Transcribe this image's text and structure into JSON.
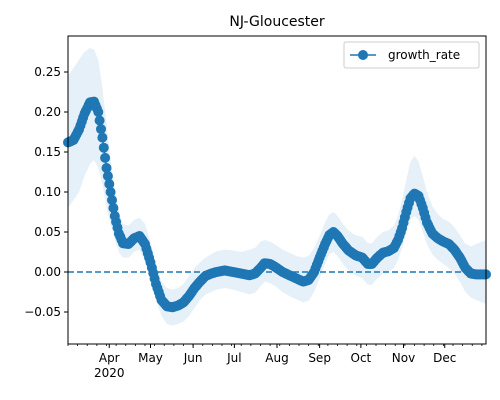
{
  "chart_data": {
    "type": "line",
    "title": "NJ-Gloucester",
    "xlabel": "",
    "ylabel": "",
    "x_axis": {
      "kind": "date",
      "start": "2020-03-02",
      "end": "2020-12-31",
      "ticks": [
        {
          "date": "2020-04-01",
          "label": "Apr",
          "sublabel": "2020"
        },
        {
          "date": "2020-05-01",
          "label": "May"
        },
        {
          "date": "2020-06-01",
          "label": "Jun"
        },
        {
          "date": "2020-07-01",
          "label": "Jul"
        },
        {
          "date": "2020-08-01",
          "label": "Aug"
        },
        {
          "date": "2020-09-01",
          "label": "Sep"
        },
        {
          "date": "2020-10-01",
          "label": "Oct"
        },
        {
          "date": "2020-11-01",
          "label": "Nov"
        },
        {
          "date": "2020-12-01",
          "label": "Dec"
        }
      ],
      "minor_ticks": "weekly"
    },
    "y_axis": {
      "ylim": [
        -0.09,
        0.295
      ],
      "ticks": [
        -0.05,
        0.0,
        0.05,
        0.1,
        0.15,
        0.2,
        0.25
      ],
      "tick_labels": [
        "−0.05",
        "0.00",
        "0.05",
        "0.10",
        "0.15",
        "0.20",
        "0.25"
      ]
    },
    "reference_line": {
      "y": 0.0,
      "style": "dashed",
      "color": "#1f77b4"
    },
    "legend": {
      "placement": "top-right",
      "entries": [
        "growth_rate"
      ]
    },
    "grid": false,
    "series": [
      {
        "name": "growth_rate",
        "color": "#1f77b4",
        "marker": "circle",
        "band_color": "#dce9f5",
        "points": [
          [
            "2020-03-02",
            0.162,
            0.08,
            0.245
          ],
          [
            "2020-03-06",
            0.165,
            0.09,
            0.255
          ],
          [
            "2020-03-10",
            0.178,
            0.1,
            0.265
          ],
          [
            "2020-03-14",
            0.198,
            0.12,
            0.275
          ],
          [
            "2020-03-18",
            0.212,
            0.135,
            0.28
          ],
          [
            "2020-03-21",
            0.213,
            0.14,
            0.278
          ],
          [
            "2020-03-24",
            0.2,
            0.13,
            0.265
          ],
          [
            "2020-03-27",
            0.168,
            0.11,
            0.23
          ],
          [
            "2020-03-30",
            0.13,
            0.08,
            0.185
          ],
          [
            "2020-04-02",
            0.1,
            0.06,
            0.14
          ],
          [
            "2020-04-05",
            0.07,
            0.04,
            0.1
          ],
          [
            "2020-04-08",
            0.048,
            0.025,
            0.075
          ],
          [
            "2020-04-11",
            0.036,
            0.018,
            0.06
          ],
          [
            "2020-04-15",
            0.035,
            0.018,
            0.058
          ],
          [
            "2020-04-19",
            0.042,
            0.025,
            0.065
          ],
          [
            "2020-04-23",
            0.045,
            0.028,
            0.068
          ],
          [
            "2020-04-27",
            0.035,
            0.015,
            0.06
          ],
          [
            "2020-05-01",
            0.012,
            -0.01,
            0.038
          ],
          [
            "2020-05-05",
            -0.015,
            -0.035,
            0.008
          ],
          [
            "2020-05-09",
            -0.035,
            -0.055,
            -0.012
          ],
          [
            "2020-05-13",
            -0.043,
            -0.065,
            -0.02
          ],
          [
            "2020-05-17",
            -0.044,
            -0.067,
            -0.022
          ],
          [
            "2020-05-21",
            -0.042,
            -0.065,
            -0.02
          ],
          [
            "2020-05-25",
            -0.038,
            -0.062,
            -0.015
          ],
          [
            "2020-05-29",
            -0.03,
            -0.055,
            -0.005
          ],
          [
            "2020-06-02",
            -0.02,
            -0.045,
            0.005
          ],
          [
            "2020-06-06",
            -0.012,
            -0.035,
            0.012
          ],
          [
            "2020-06-10",
            -0.005,
            -0.028,
            0.018
          ],
          [
            "2020-06-14",
            -0.002,
            -0.025,
            0.022
          ],
          [
            "2020-06-18",
            0.0,
            -0.022,
            0.026
          ],
          [
            "2020-06-24",
            0.002,
            -0.02,
            0.028
          ],
          [
            "2020-06-30",
            0.0,
            -0.022,
            0.027
          ],
          [
            "2020-07-06",
            -0.002,
            -0.025,
            0.025
          ],
          [
            "2020-07-12",
            -0.004,
            -0.028,
            0.028
          ],
          [
            "2020-07-16",
            -0.002,
            -0.026,
            0.03
          ],
          [
            "2020-07-20",
            0.005,
            -0.018,
            0.038
          ],
          [
            "2020-07-23",
            0.011,
            -0.012,
            0.04
          ],
          [
            "2020-07-27",
            0.01,
            -0.014,
            0.038
          ],
          [
            "2020-07-31",
            0.006,
            -0.018,
            0.034
          ],
          [
            "2020-08-05",
            0.0,
            -0.025,
            0.028
          ],
          [
            "2020-08-10",
            -0.004,
            -0.03,
            0.024
          ],
          [
            "2020-08-15",
            -0.008,
            -0.034,
            0.02
          ],
          [
            "2020-08-20",
            -0.012,
            -0.038,
            0.018
          ],
          [
            "2020-08-24",
            -0.01,
            -0.036,
            0.02
          ],
          [
            "2020-08-28",
            0.0,
            -0.025,
            0.03
          ],
          [
            "2020-09-01",
            0.018,
            -0.008,
            0.045
          ],
          [
            "2020-09-05",
            0.035,
            0.01,
            0.062
          ],
          [
            "2020-09-08",
            0.046,
            0.022,
            0.072
          ],
          [
            "2020-09-11",
            0.05,
            0.025,
            0.075
          ],
          [
            "2020-09-14",
            0.045,
            0.02,
            0.07
          ],
          [
            "2020-09-18",
            0.035,
            0.01,
            0.06
          ],
          [
            "2020-09-22",
            0.027,
            0.002,
            0.052
          ],
          [
            "2020-09-27",
            0.021,
            -0.004,
            0.046
          ],
          [
            "2020-10-02",
            0.018,
            -0.008,
            0.044
          ],
          [
            "2020-10-06",
            0.01,
            -0.016,
            0.036
          ],
          [
            "2020-10-09",
            0.01,
            -0.016,
            0.036
          ],
          [
            "2020-10-13",
            0.018,
            -0.008,
            0.044
          ],
          [
            "2020-10-17",
            0.024,
            -0.002,
            0.05
          ],
          [
            "2020-10-21",
            0.026,
            0.0,
            0.052
          ],
          [
            "2020-10-25",
            0.03,
            0.005,
            0.058
          ],
          [
            "2020-10-28",
            0.04,
            0.015,
            0.07
          ],
          [
            "2020-10-31",
            0.055,
            0.03,
            0.09
          ],
          [
            "2020-11-03",
            0.075,
            0.05,
            0.115
          ],
          [
            "2020-11-06",
            0.092,
            0.065,
            0.138
          ],
          [
            "2020-11-09",
            0.098,
            0.07,
            0.145
          ],
          [
            "2020-11-12",
            0.095,
            0.065,
            0.138
          ],
          [
            "2020-11-15",
            0.08,
            0.05,
            0.12
          ],
          [
            "2020-11-18",
            0.062,
            0.035,
            0.1
          ],
          [
            "2020-11-22",
            0.048,
            0.022,
            0.082
          ],
          [
            "2020-11-26",
            0.042,
            0.015,
            0.072
          ],
          [
            "2020-11-30",
            0.038,
            0.01,
            0.066
          ],
          [
            "2020-12-04",
            0.035,
            0.005,
            0.063
          ],
          [
            "2020-12-08",
            0.028,
            -0.002,
            0.056
          ],
          [
            "2020-12-12",
            0.018,
            -0.012,
            0.046
          ],
          [
            "2020-12-16",
            0.005,
            -0.025,
            0.035
          ],
          [
            "2020-12-20",
            -0.002,
            -0.032,
            0.032
          ],
          [
            "2020-12-24",
            -0.003,
            -0.035,
            0.035
          ],
          [
            "2020-12-28",
            -0.003,
            -0.038,
            0.038
          ],
          [
            "2020-12-31",
            -0.003,
            -0.04,
            0.04
          ]
        ]
      }
    ]
  }
}
